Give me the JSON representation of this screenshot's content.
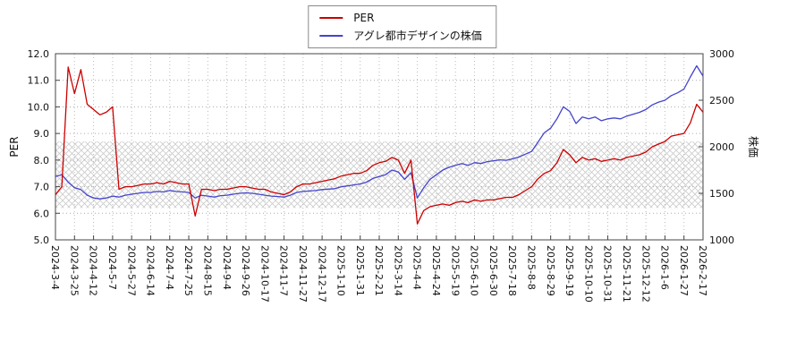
{
  "legend": {
    "items": [
      {
        "label": "PER",
        "color": "#cc0000"
      },
      {
        "label": "アグレ都市デザインの株価",
        "color": "#4444cc"
      }
    ]
  },
  "chart_data": {
    "type": "line",
    "title": "",
    "grid": true,
    "legend_position": "top-center",
    "points_per_x_tick": 3,
    "x_tick_labels": [
      "2024-3-4",
      "2024-3-25",
      "2024-4-12",
      "2024-5-7",
      "2024-5-27",
      "2024-6-14",
      "2024-7-4",
      "2024-7-25",
      "2024-8-15",
      "2024-9-4",
      "2024-9-26",
      "2024-10-17",
      "2024-11-7",
      "2024-11-27",
      "2024-12-17",
      "2025-1-10",
      "2025-1-31",
      "2025-2-21",
      "2025-3-14",
      "2025-4-4",
      "2025-4-24",
      "2025-5-19",
      "2025-6-10",
      "2025-6-30",
      "2025-7-18",
      "2025-8-8",
      "2025-8-29",
      "2025-9-19",
      "2025-10-10",
      "2025-10-31",
      "2025-11-21",
      "2025-12-12",
      "2026-1-6",
      "2026-1-27",
      "2026-2-17"
    ],
    "left_axis": {
      "label": "PER",
      "min": 5.0,
      "max": 12.0,
      "ticks": [
        12,
        11,
        10,
        9,
        8,
        7,
        6,
        5
      ],
      "tick_labels": [
        "12.0",
        "11.0",
        "10.0",
        "9.0",
        "8.0",
        "7.0",
        "6.0",
        "5.0"
      ]
    },
    "right_axis": {
      "label": "株価",
      "min": 1000,
      "max": 3000,
      "ticks": [
        3000,
        2500,
        2000,
        1500,
        1000
      ],
      "tick_labels": [
        "3000",
        "2500",
        "2000",
        "1500",
        "1000"
      ]
    },
    "band": {
      "axis": "left",
      "from": 6.2,
      "to": 8.7,
      "style": "crosshatch"
    },
    "series": [
      {
        "name": "PER",
        "axis": "left",
        "color": "#cc0000",
        "values": [
          6.7,
          7.0,
          11.5,
          10.5,
          11.4,
          10.1,
          9.9,
          9.7,
          9.8,
          10.0,
          6.9,
          7.0,
          7.0,
          7.05,
          7.1,
          7.1,
          7.15,
          7.1,
          7.2,
          7.15,
          7.1,
          7.1,
          5.9,
          6.9,
          6.9,
          6.85,
          6.9,
          6.9,
          6.95,
          7.0,
          7.0,
          6.95,
          6.9,
          6.9,
          6.8,
          6.75,
          6.7,
          6.8,
          7.0,
          7.1,
          7.1,
          7.15,
          7.2,
          7.25,
          7.3,
          7.4,
          7.45,
          7.5,
          7.5,
          7.6,
          7.8,
          7.9,
          7.95,
          8.1,
          8.0,
          7.5,
          8.0,
          5.6,
          6.1,
          6.25,
          6.3,
          6.35,
          6.3,
          6.4,
          6.45,
          6.4,
          6.5,
          6.45,
          6.5,
          6.5,
          6.55,
          6.6,
          6.6,
          6.7,
          6.85,
          7.0,
          7.3,
          7.5,
          7.6,
          7.9,
          8.4,
          8.2,
          7.9,
          8.1,
          8.0,
          8.05,
          7.95,
          8.0,
          8.05,
          8.0,
          8.1,
          8.15,
          8.2,
          8.3,
          8.5,
          8.6,
          8.7,
          8.9,
          8.95,
          9.0,
          9.4,
          10.1,
          9.8
        ]
      },
      {
        "name": "アグレ都市デザインの株価",
        "axis": "right",
        "color": "#4444cc",
        "values": [
          1680,
          1700,
          1620,
          1560,
          1540,
          1480,
          1450,
          1440,
          1450,
          1470,
          1460,
          1480,
          1490,
          1500,
          1510,
          1510,
          1520,
          1515,
          1530,
          1520,
          1515,
          1510,
          1450,
          1480,
          1470,
          1460,
          1475,
          1480,
          1490,
          1500,
          1505,
          1500,
          1490,
          1480,
          1470,
          1465,
          1460,
          1480,
          1510,
          1520,
          1525,
          1530,
          1540,
          1545,
          1550,
          1570,
          1580,
          1590,
          1600,
          1620,
          1660,
          1680,
          1700,
          1750,
          1730,
          1650,
          1720,
          1450,
          1560,
          1650,
          1700,
          1750,
          1780,
          1800,
          1820,
          1800,
          1830,
          1820,
          1840,
          1850,
          1860,
          1855,
          1870,
          1890,
          1920,
          1950,
          2050,
          2150,
          2200,
          2300,
          2430,
          2380,
          2250,
          2320,
          2300,
          2320,
          2280,
          2300,
          2310,
          2300,
          2330,
          2350,
          2370,
          2400,
          2450,
          2480,
          2500,
          2550,
          2580,
          2620,
          2750,
          2870,
          2760
        ]
      }
    ]
  }
}
